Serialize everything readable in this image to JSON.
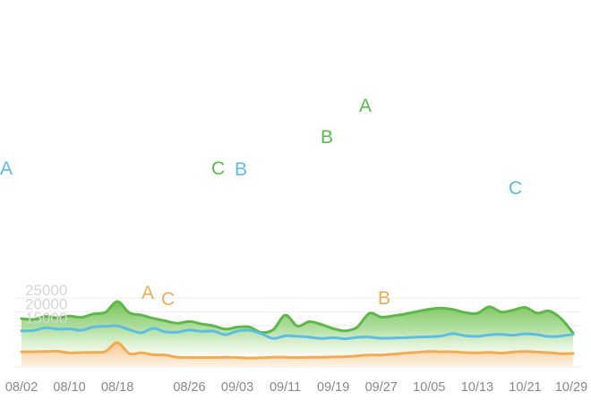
{
  "chart_data": {
    "type": "area",
    "title": "",
    "xlabel": "",
    "ylabel": "",
    "ylim": [
      0,
      25000
    ],
    "yticks": [
      "25000",
      "20000",
      "15000"
    ],
    "grid": true,
    "legend": "none",
    "xticks": [
      "08/02",
      "08/10",
      "08/18",
      "08/26",
      "09/03",
      "09/11",
      "09/19",
      "09/27",
      "10/05",
      "10/13",
      "10/21",
      "10/29"
    ],
    "x": [
      "08/02",
      "08/04",
      "08/06",
      "08/08",
      "08/10",
      "08/12",
      "08/14",
      "08/16",
      "08/17",
      "08/18",
      "08/19",
      "08/21",
      "08/23",
      "08/25",
      "08/26",
      "08/28",
      "08/30",
      "09/01",
      "09/03",
      "09/05",
      "09/07",
      "09/09",
      "09/11",
      "09/13",
      "09/15",
      "09/17",
      "09/19",
      "09/21",
      "09/23",
      "09/25",
      "09/27",
      "09/29",
      "10/01",
      "10/03",
      "10/05",
      "10/07",
      "10/09",
      "10/11",
      "10/13",
      "10/15",
      "10/17",
      "10/19",
      "10/21",
      "10/23",
      "10/25",
      "10/27",
      "10/29"
    ],
    "series": [
      {
        "color": "#5cb84a",
        "fill": "#77c65b",
        "values": [
          17500,
          17200,
          18300,
          17800,
          18400,
          18000,
          19200,
          19800,
          23700,
          19600,
          18800,
          17600,
          16700,
          15800,
          16500,
          15600,
          14900,
          13700,
          14400,
          14500,
          12500,
          13500,
          18800,
          14800,
          16400,
          15400,
          13900,
          13100,
          14400,
          19400,
          18100,
          18500,
          19200,
          20100,
          20900,
          21300,
          20800,
          19700,
          19400,
          21800,
          19900,
          20600,
          21600,
          19500,
          20300,
          17500,
          12300
        ]
      },
      {
        "color": "#5dbde2",
        "values": [
          13100,
          13200,
          14200,
          13700,
          13800,
          13300,
          14500,
          14700,
          14900,
          13500,
          12400,
          14000,
          12700,
          12600,
          13400,
          12900,
          13000,
          11700,
          13000,
          13300,
          12000,
          10300,
          11300,
          11100,
          10800,
          10300,
          10600,
          10200,
          10700,
          10800,
          10400,
          10500,
          10600,
          10800,
          10900,
          11200,
          12100,
          11300,
          11100,
          11600,
          11800,
          11500,
          12000,
          11700,
          11000,
          11200,
          11800
        ]
      },
      {
        "color": "#f2ab53",
        "values": [
          5500,
          5500,
          5600,
          5700,
          5100,
          5200,
          5300,
          5600,
          8800,
          4800,
          5100,
          4400,
          4300,
          3500,
          3400,
          3400,
          3400,
          3500,
          3400,
          3200,
          3300,
          3500,
          3500,
          3400,
          3500,
          3500,
          3600,
          3700,
          4000,
          4300,
          4300,
          4600,
          5000,
          5300,
          5600,
          5500,
          5500,
          5200,
          5100,
          5300,
          5000,
          5400,
          5600,
          5400,
          5200,
          4800,
          4900
        ]
      }
    ],
    "annotations": [
      {
        "text": "A",
        "color": "#5dbde2"
      },
      {
        "text": "C",
        "color": "#5cb84a"
      },
      {
        "text": "B",
        "color": "#5dbde2"
      },
      {
        "text": "B",
        "color": "#5cb84a"
      },
      {
        "text": "A",
        "color": "#5cb84a"
      },
      {
        "text": "C",
        "color": "#5dbde2"
      },
      {
        "text": "A",
        "color": "#f2ab53"
      },
      {
        "text": "C",
        "color": "#f2ab53"
      },
      {
        "text": "B",
        "color": "#f2ab53"
      }
    ]
  }
}
